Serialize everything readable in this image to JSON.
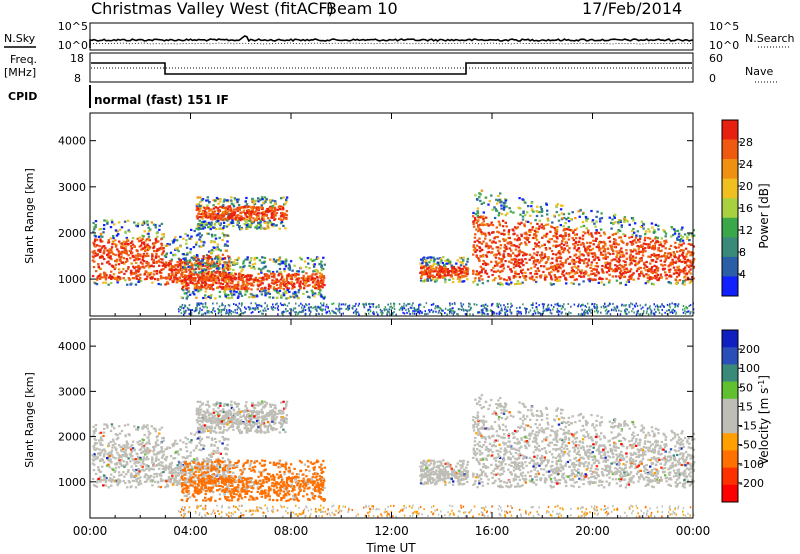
{
  "header": {
    "title": "Christmas Valley West (fitACF)",
    "beam": "Beam 10",
    "date": "17/Feb/2014"
  },
  "noise_panel": {
    "left_label": "N.Sky",
    "left_ticks": [
      "10^5",
      "10^0"
    ],
    "right_label": "N.Search",
    "right_ticks": [
      "10^5",
      "10^0"
    ]
  },
  "freq_panel": {
    "left_label_1": "Freq.",
    "left_label_2": "[MHz]",
    "left_ticks": [
      "18",
      "8"
    ],
    "right_label": "Nave",
    "right_ticks": [
      "60",
      "0"
    ]
  },
  "cpid": {
    "label": "CPID",
    "value": "normal (fast) 151 IF"
  },
  "colors": {
    "power_scale": [
      "#1020ff",
      "#2a5fa8",
      "#3a8a7a",
      "#3aa84a",
      "#a8d040",
      "#f0c020",
      "#f09010",
      "#f05a10",
      "#e82010"
    ],
    "velocity_scale": [
      "#ff0000",
      "#ff3000",
      "#ff7000",
      "#ffa000",
      "#bebeb6",
      "#bebeb6",
      "#60c030",
      "#3a8a7a",
      "#2a4fb8",
      "#1020c0"
    ]
  },
  "chart_data": [
    {
      "type": "heatmap",
      "name_key": "power",
      "ylabel": "Slant Range [km]",
      "yticks": [
        "1000",
        "2000",
        "3000",
        "4000"
      ],
      "ylim": [
        200,
        4600
      ],
      "xlim_hours": [
        0,
        24
      ],
      "colorbar_label": "Power [dB]",
      "colorbar_ticks": [
        "4",
        "8",
        "12",
        "16",
        "20",
        "24",
        "28"
      ],
      "colorbar_range": [
        0,
        32
      ]
    },
    {
      "type": "heatmap",
      "name_key": "velocity",
      "ylabel": "Slant Range [km]",
      "yticks": [
        "1000",
        "2000",
        "3000",
        "4000"
      ],
      "ylim": [
        200,
        4600
      ],
      "xlim_hours": [
        0,
        24
      ],
      "colorbar_label": "Velocity [m s",
      "colorbar_label_sup": "-1",
      "colorbar_label_end": "]",
      "colorbar_ticks": [
        "-200",
        "-100",
        "-50",
        "-15",
        "15",
        "50",
        "100",
        "200"
      ]
    }
  ],
  "xaxis": {
    "label": "Time UT",
    "ticks": [
      "00:00",
      "04:00",
      "08:00",
      "12:00",
      "16:00",
      "20:00",
      "00:00"
    ],
    "tick_hours": [
      0,
      4,
      8,
      12,
      16,
      20,
      24
    ]
  }
}
